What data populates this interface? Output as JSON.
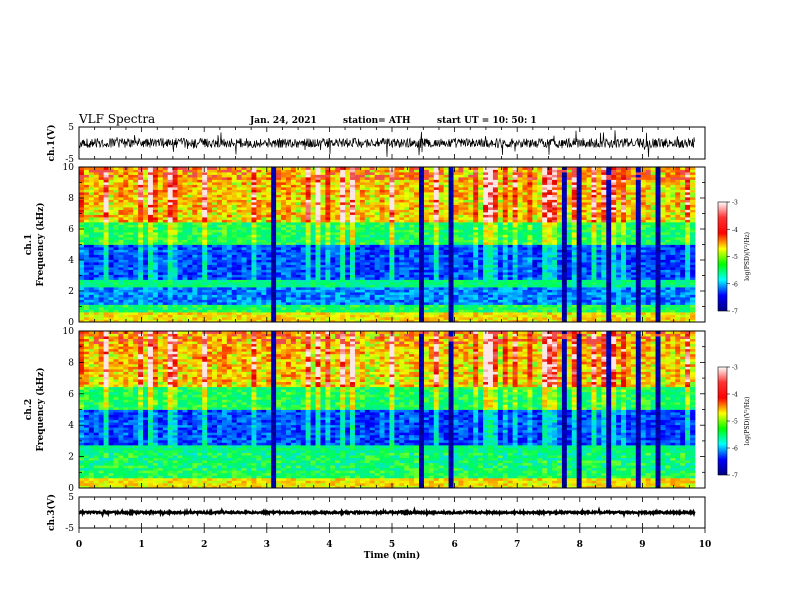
{
  "header": {
    "title": "VLF Spectra",
    "date": "Jan. 24, 2021",
    "station": "station= ATH",
    "start": "start  UT =   10: 50: 1"
  },
  "colorbar": {
    "label": "log(PSD)(V²/Hz)",
    "ticks": [
      "-3",
      "-4",
      "-5",
      "-6",
      "-7"
    ],
    "colors": [
      "#ffffff",
      "#ff3333",
      "#ff0000",
      "#ffff00",
      "#00ff00",
      "#00ffff",
      "#0000ff",
      "#000080"
    ]
  },
  "chart_data": [
    {
      "type": "line",
      "name": "ch1-waveform",
      "ylabel": "ch.1(V)",
      "ylim": [
        -5,
        5
      ],
      "yticks": [
        "5",
        "-5"
      ],
      "xlim": [
        0,
        10
      ],
      "baseline": 0,
      "noise_amplitude": 1.5
    },
    {
      "type": "heatmap",
      "name": "ch1-spectrogram",
      "ylabel_top": "ch.1",
      "ylabel": "Frequency  (kHz)",
      "ylim": [
        0,
        10
      ],
      "yticks": [
        "0",
        "2",
        "4",
        "6",
        "8",
        "10"
      ],
      "xlim": [
        0,
        10
      ],
      "zrange": [
        -7,
        -3
      ],
      "zlabel": "log(PSD)(V²/Hz)"
    },
    {
      "type": "heatmap",
      "name": "ch2-spectrogram",
      "ylabel_top": "ch.2",
      "ylabel": "Frequency  (kHz)",
      "ylim": [
        0,
        10
      ],
      "yticks": [
        "0",
        "2",
        "4",
        "6",
        "8",
        "10"
      ],
      "xlim": [
        0,
        10
      ],
      "zrange": [
        -7,
        -3
      ],
      "zlabel": "log(PSD)(V²/Hz)"
    },
    {
      "type": "line",
      "name": "ch3-waveform",
      "ylabel": "ch.3(V)",
      "ylim": [
        -5,
        5
      ],
      "yticks": [
        "5",
        "-5"
      ],
      "xlim": [
        0,
        10
      ],
      "baseline": 0,
      "noise_amplitude": 0.3
    }
  ],
  "xaxis": {
    "label": "Time  (min)",
    "ticks": [
      "0",
      "1",
      "2",
      "3",
      "4",
      "5",
      "6",
      "7",
      "8",
      "9",
      "10"
    ]
  }
}
